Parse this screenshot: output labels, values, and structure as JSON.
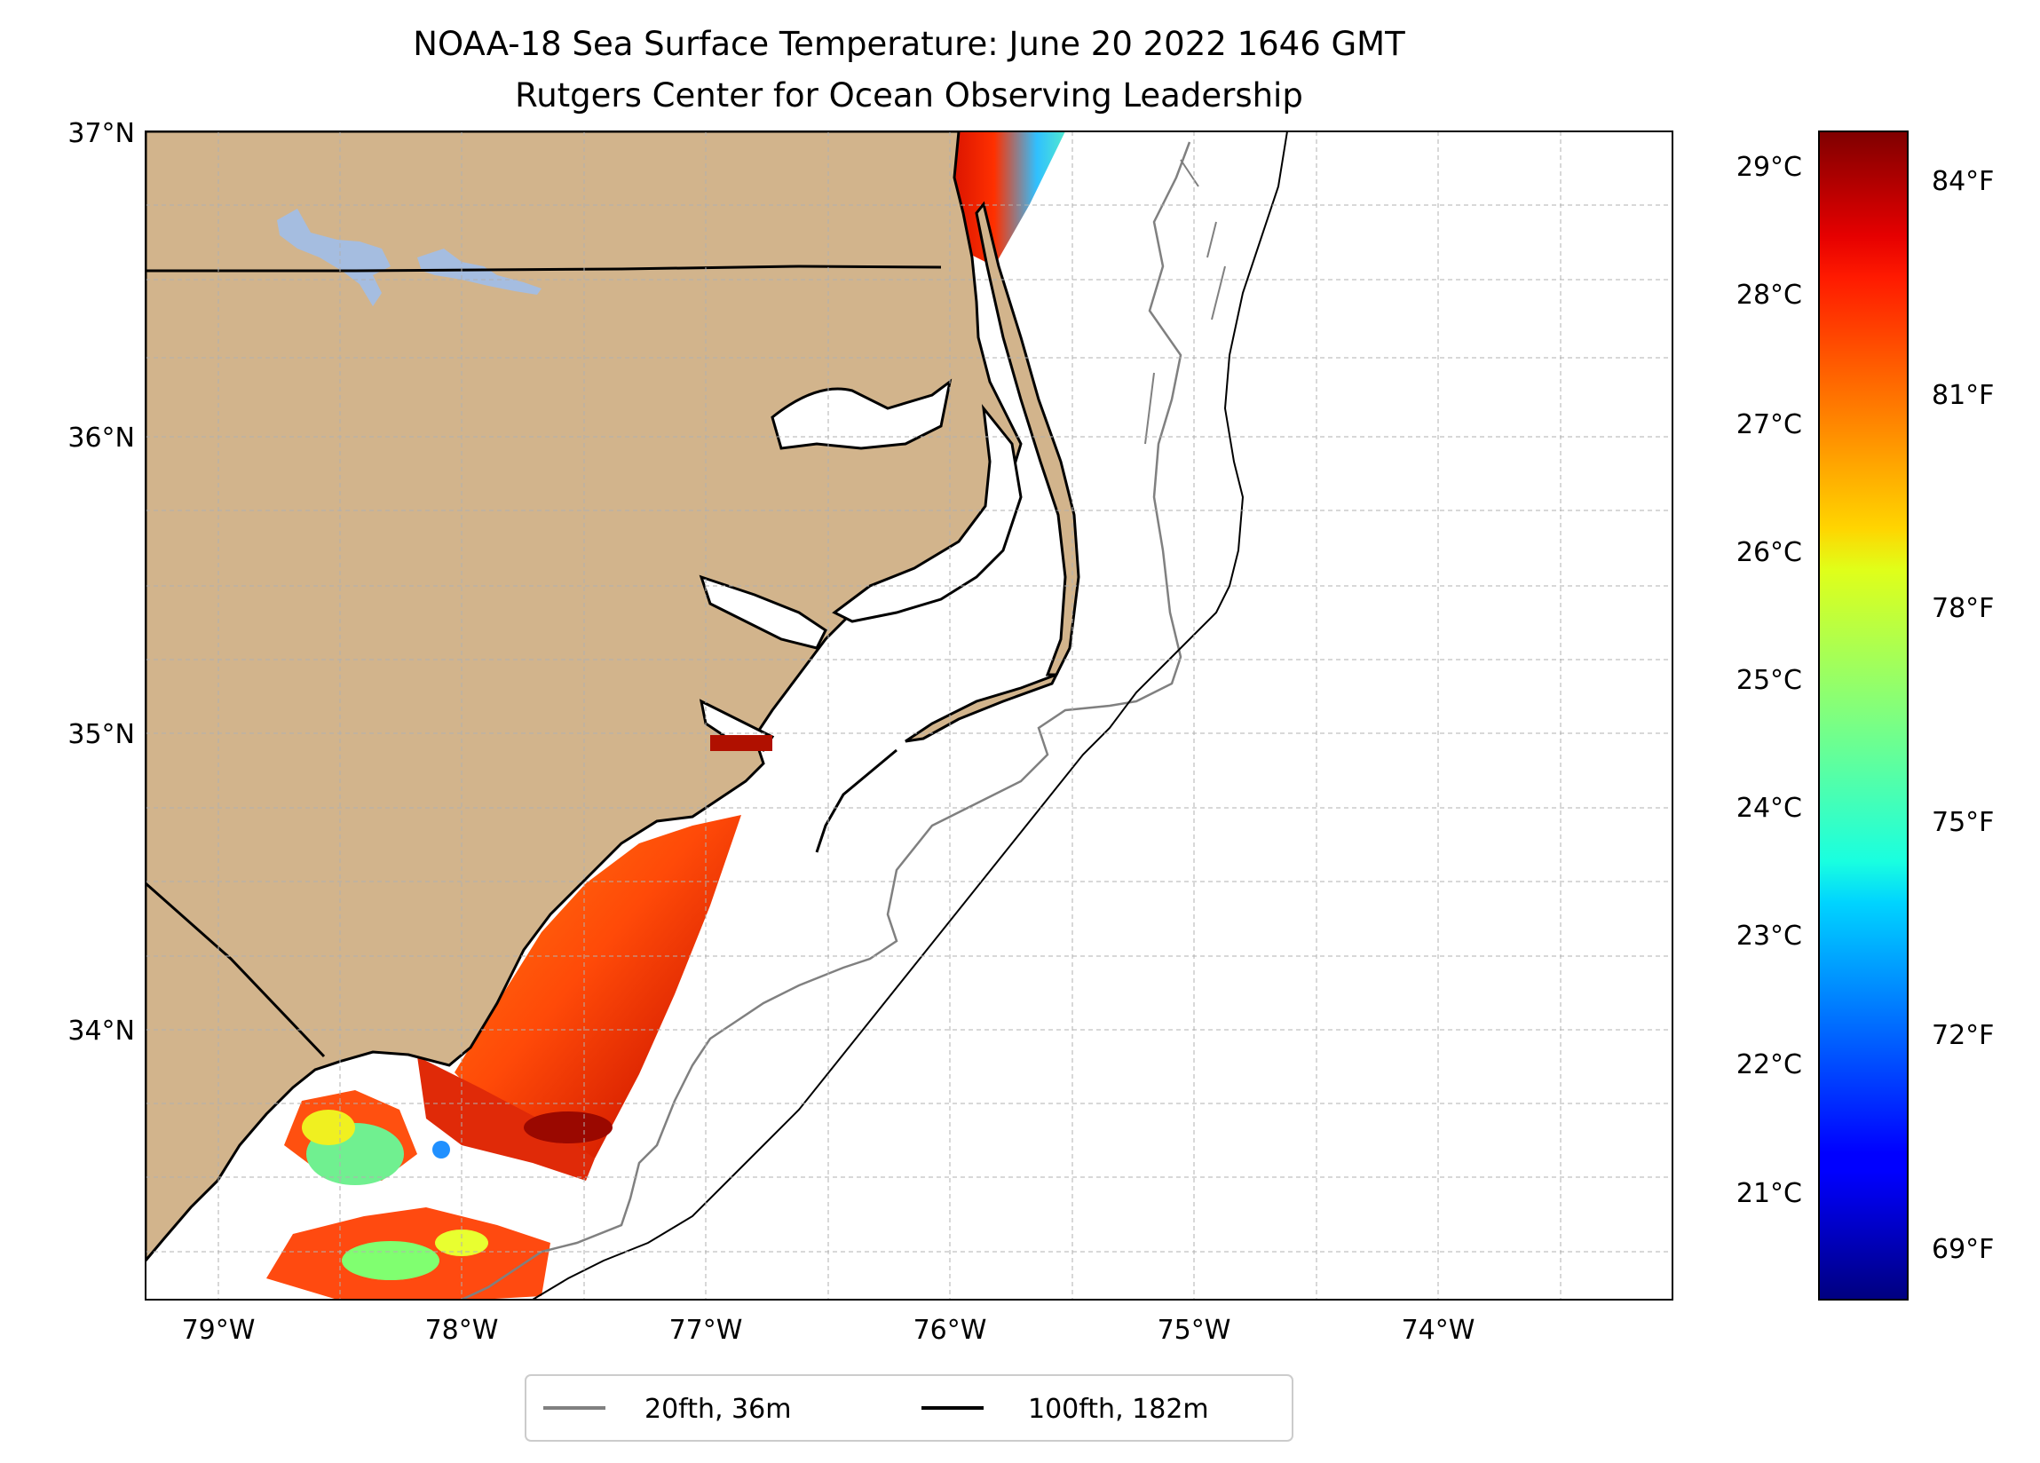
{
  "title": {
    "line1": "NOAA-18 Sea Surface Temperature: June 20 2022 1646 GMT",
    "line2": "Rutgers Center for Ocean Observing Leadership"
  },
  "map": {
    "lat_labels": [
      "37°N",
      "36°N",
      "35°N",
      "34°N"
    ],
    "lon_labels": [
      "79°W",
      "78°W",
      "77°W",
      "76°W",
      "75°W",
      "74°W"
    ],
    "land_color": "#d2b48c",
    "lake_color": "#a5bde0",
    "colormap": "jet"
  },
  "colorbar": {
    "celsius_labels": [
      "29°C",
      "28°C",
      "27°C",
      "26°C",
      "25°C",
      "24°C",
      "23°C",
      "22°C",
      "21°C"
    ],
    "fahrenheit_labels": [
      "84°F",
      "81°F",
      "78°F",
      "75°F",
      "72°F",
      "69°F"
    ]
  },
  "legend": {
    "items": [
      {
        "label": "20fth, 36m",
        "color": "#808080"
      },
      {
        "label": "100fth, 182m",
        "color": "#000000"
      }
    ]
  }
}
